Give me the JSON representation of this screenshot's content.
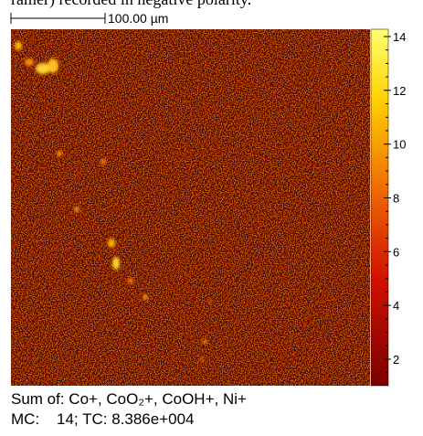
{
  "header": {
    "caption_fragment": "ramer) recorded in negative polarity."
  },
  "scale_bar": {
    "label": "100.00 µm"
  },
  "colorbar": {
    "ticks": [
      2,
      4,
      6,
      8,
      10,
      12,
      14
    ]
  },
  "footer": {
    "line1": "Sum of: Co+, CoO₂+, CoOH+, Ni+",
    "line2": "MC:    14; TC: 8.386e+004"
  }
}
